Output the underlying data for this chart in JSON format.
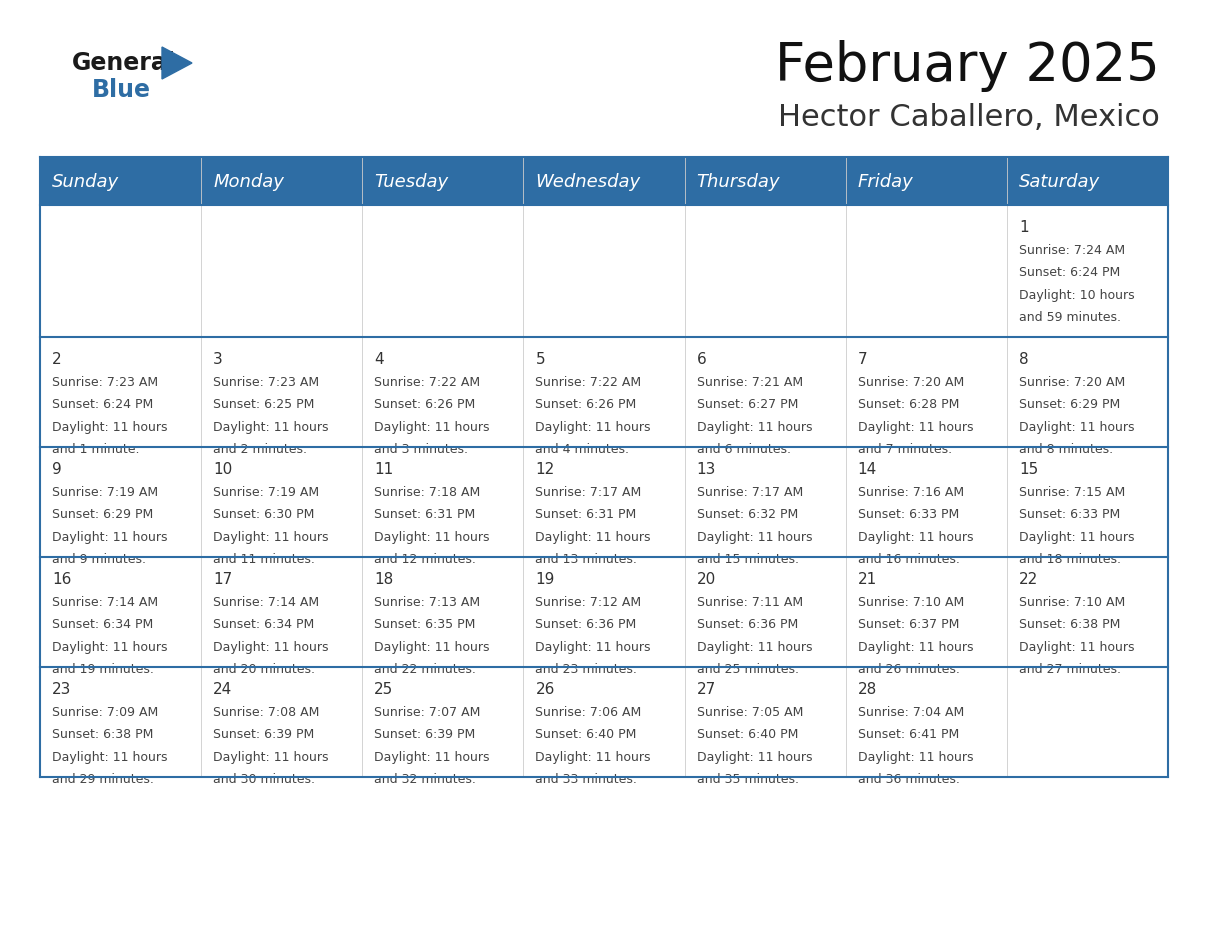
{
  "title": "February 2025",
  "subtitle": "Hector Caballero, Mexico",
  "header_color": "#2e6da4",
  "header_text_color": "#ffffff",
  "background_color": "#ffffff",
  "cell_bg_color": "#ffffff",
  "divider_color": "#2e6da4",
  "cell_border_color": "#cccccc",
  "days_of_week": [
    "Sunday",
    "Monday",
    "Tuesday",
    "Wednesday",
    "Thursday",
    "Friday",
    "Saturday"
  ],
  "weeks": [
    [
      {
        "day": null,
        "sunrise": null,
        "sunset": null,
        "daylight_line1": null,
        "daylight_line2": null
      },
      {
        "day": null,
        "sunrise": null,
        "sunset": null,
        "daylight_line1": null,
        "daylight_line2": null
      },
      {
        "day": null,
        "sunrise": null,
        "sunset": null,
        "daylight_line1": null,
        "daylight_line2": null
      },
      {
        "day": null,
        "sunrise": null,
        "sunset": null,
        "daylight_line1": null,
        "daylight_line2": null
      },
      {
        "day": null,
        "sunrise": null,
        "sunset": null,
        "daylight_line1": null,
        "daylight_line2": null
      },
      {
        "day": null,
        "sunrise": null,
        "sunset": null,
        "daylight_line1": null,
        "daylight_line2": null
      },
      {
        "day": 1,
        "sunrise": "7:24 AM",
        "sunset": "6:24 PM",
        "daylight_line1": "Daylight: 10 hours",
        "daylight_line2": "and 59 minutes."
      }
    ],
    [
      {
        "day": 2,
        "sunrise": "7:23 AM",
        "sunset": "6:24 PM",
        "daylight_line1": "Daylight: 11 hours",
        "daylight_line2": "and 1 minute."
      },
      {
        "day": 3,
        "sunrise": "7:23 AM",
        "sunset": "6:25 PM",
        "daylight_line1": "Daylight: 11 hours",
        "daylight_line2": "and 2 minutes."
      },
      {
        "day": 4,
        "sunrise": "7:22 AM",
        "sunset": "6:26 PM",
        "daylight_line1": "Daylight: 11 hours",
        "daylight_line2": "and 3 minutes."
      },
      {
        "day": 5,
        "sunrise": "7:22 AM",
        "sunset": "6:26 PM",
        "daylight_line1": "Daylight: 11 hours",
        "daylight_line2": "and 4 minutes."
      },
      {
        "day": 6,
        "sunrise": "7:21 AM",
        "sunset": "6:27 PM",
        "daylight_line1": "Daylight: 11 hours",
        "daylight_line2": "and 6 minutes."
      },
      {
        "day": 7,
        "sunrise": "7:20 AM",
        "sunset": "6:28 PM",
        "daylight_line1": "Daylight: 11 hours",
        "daylight_line2": "and 7 minutes."
      },
      {
        "day": 8,
        "sunrise": "7:20 AM",
        "sunset": "6:29 PM",
        "daylight_line1": "Daylight: 11 hours",
        "daylight_line2": "and 8 minutes."
      }
    ],
    [
      {
        "day": 9,
        "sunrise": "7:19 AM",
        "sunset": "6:29 PM",
        "daylight_line1": "Daylight: 11 hours",
        "daylight_line2": "and 9 minutes."
      },
      {
        "day": 10,
        "sunrise": "7:19 AM",
        "sunset": "6:30 PM",
        "daylight_line1": "Daylight: 11 hours",
        "daylight_line2": "and 11 minutes."
      },
      {
        "day": 11,
        "sunrise": "7:18 AM",
        "sunset": "6:31 PM",
        "daylight_line1": "Daylight: 11 hours",
        "daylight_line2": "and 12 minutes."
      },
      {
        "day": 12,
        "sunrise": "7:17 AM",
        "sunset": "6:31 PM",
        "daylight_line1": "Daylight: 11 hours",
        "daylight_line2": "and 13 minutes."
      },
      {
        "day": 13,
        "sunrise": "7:17 AM",
        "sunset": "6:32 PM",
        "daylight_line1": "Daylight: 11 hours",
        "daylight_line2": "and 15 minutes."
      },
      {
        "day": 14,
        "sunrise": "7:16 AM",
        "sunset": "6:33 PM",
        "daylight_line1": "Daylight: 11 hours",
        "daylight_line2": "and 16 minutes."
      },
      {
        "day": 15,
        "sunrise": "7:15 AM",
        "sunset": "6:33 PM",
        "daylight_line1": "Daylight: 11 hours",
        "daylight_line2": "and 18 minutes."
      }
    ],
    [
      {
        "day": 16,
        "sunrise": "7:14 AM",
        "sunset": "6:34 PM",
        "daylight_line1": "Daylight: 11 hours",
        "daylight_line2": "and 19 minutes."
      },
      {
        "day": 17,
        "sunrise": "7:14 AM",
        "sunset": "6:34 PM",
        "daylight_line1": "Daylight: 11 hours",
        "daylight_line2": "and 20 minutes."
      },
      {
        "day": 18,
        "sunrise": "7:13 AM",
        "sunset": "6:35 PM",
        "daylight_line1": "Daylight: 11 hours",
        "daylight_line2": "and 22 minutes."
      },
      {
        "day": 19,
        "sunrise": "7:12 AM",
        "sunset": "6:36 PM",
        "daylight_line1": "Daylight: 11 hours",
        "daylight_line2": "and 23 minutes."
      },
      {
        "day": 20,
        "sunrise": "7:11 AM",
        "sunset": "6:36 PM",
        "daylight_line1": "Daylight: 11 hours",
        "daylight_line2": "and 25 minutes."
      },
      {
        "day": 21,
        "sunrise": "7:10 AM",
        "sunset": "6:37 PM",
        "daylight_line1": "Daylight: 11 hours",
        "daylight_line2": "and 26 minutes."
      },
      {
        "day": 22,
        "sunrise": "7:10 AM",
        "sunset": "6:38 PM",
        "daylight_line1": "Daylight: 11 hours",
        "daylight_line2": "and 27 minutes."
      }
    ],
    [
      {
        "day": 23,
        "sunrise": "7:09 AM",
        "sunset": "6:38 PM",
        "daylight_line1": "Daylight: 11 hours",
        "daylight_line2": "and 29 minutes."
      },
      {
        "day": 24,
        "sunrise": "7:08 AM",
        "sunset": "6:39 PM",
        "daylight_line1": "Daylight: 11 hours",
        "daylight_line2": "and 30 minutes."
      },
      {
        "day": 25,
        "sunrise": "7:07 AM",
        "sunset": "6:39 PM",
        "daylight_line1": "Daylight: 11 hours",
        "daylight_line2": "and 32 minutes."
      },
      {
        "day": 26,
        "sunrise": "7:06 AM",
        "sunset": "6:40 PM",
        "daylight_line1": "Daylight: 11 hours",
        "daylight_line2": "and 33 minutes."
      },
      {
        "day": 27,
        "sunrise": "7:05 AM",
        "sunset": "6:40 PM",
        "daylight_line1": "Daylight: 11 hours",
        "daylight_line2": "and 35 minutes."
      },
      {
        "day": 28,
        "sunrise": "7:04 AM",
        "sunset": "6:41 PM",
        "daylight_line1": "Daylight: 11 hours",
        "daylight_line2": "and 36 minutes."
      },
      {
        "day": null,
        "sunrise": null,
        "sunset": null,
        "daylight_line1": null,
        "daylight_line2": null
      }
    ]
  ],
  "logo_general_color": "#1a1a1a",
  "logo_blue_color": "#2e6da4",
  "title_fontsize": 38,
  "subtitle_fontsize": 22,
  "day_header_fontsize": 13,
  "day_number_fontsize": 11,
  "cell_text_fontsize": 9
}
